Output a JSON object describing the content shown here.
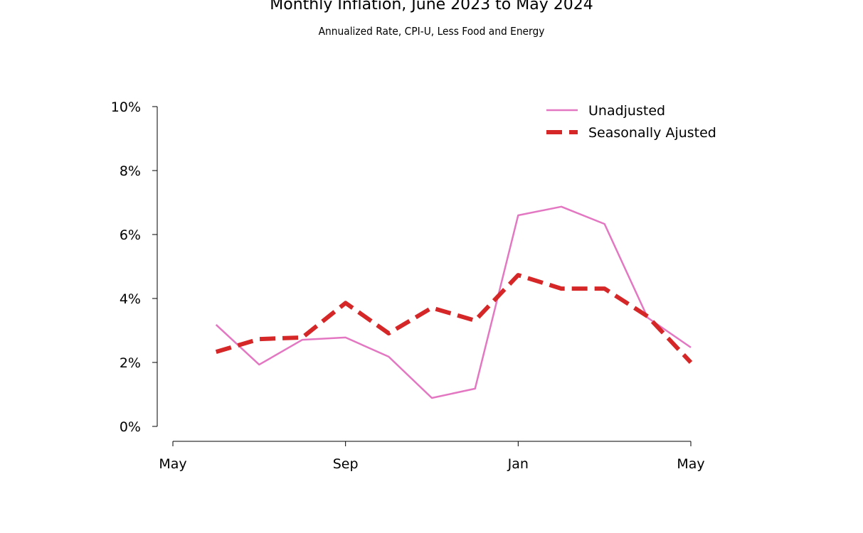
{
  "chart_data": {
    "type": "line",
    "title": "Monthly Inflation, June 2023 to May 2024",
    "subtitle": "Annualized Rate, CPI-U, Less Food and Energy",
    "xlabel": "",
    "ylabel": "",
    "x": [
      "2023-06",
      "2023-07",
      "2023-08",
      "2023-09",
      "2023-10",
      "2023-11",
      "2023-12",
      "2024-01",
      "2024-02",
      "2024-03",
      "2024-04",
      "2024-05"
    ],
    "x_ticks": [
      {
        "label": "May",
        "month_index": 0
      },
      {
        "label": "Sep",
        "month_index": 4
      },
      {
        "label": "Jan",
        "month_index": 8
      },
      {
        "label": "May",
        "month_index": 12
      }
    ],
    "xlim_month_index": [
      0,
      12
    ],
    "ylim": [
      0,
      10
    ],
    "y_ticks": [
      {
        "value": 0,
        "label": "0%"
      },
      {
        "value": 2,
        "label": "2%"
      },
      {
        "value": 4,
        "label": "4%"
      },
      {
        "value": 6,
        "label": "6%"
      },
      {
        "value": 8,
        "label": "8%"
      },
      {
        "value": 10,
        "label": "10%"
      }
    ],
    "grid": false,
    "legend_position": "top-right",
    "series": [
      {
        "name": "Unadjusted",
        "color": "#e377c2",
        "style": "solid",
        "values": [
          3.18,
          1.93,
          2.71,
          2.78,
          2.18,
          0.89,
          1.18,
          6.6,
          6.87,
          6.33,
          3.4,
          2.47
        ]
      },
      {
        "name": "Seasonally Ajusted",
        "color": "#d62728",
        "style": "dashed",
        "values": [
          2.33,
          2.73,
          2.78,
          3.86,
          2.91,
          3.71,
          3.31,
          4.73,
          4.31,
          4.31,
          3.44,
          2.0
        ]
      }
    ]
  }
}
